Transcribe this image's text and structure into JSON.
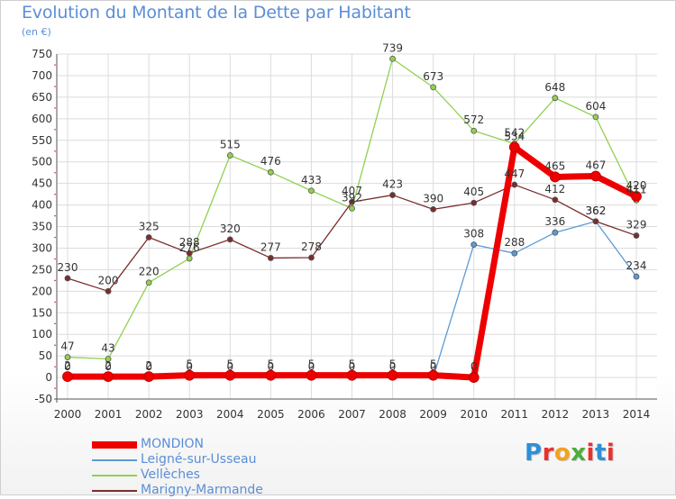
{
  "header": {
    "title": "Evolution du Montant de la Dette par Habitant",
    "unit": "(en €)"
  },
  "logo": {
    "text": "Proxiti",
    "colors": [
      "#2e8fd6",
      "#e8322e",
      "#f2a21c",
      "#4cae3a",
      "#e8322e",
      "#2e8fd6",
      "#e8322e"
    ]
  },
  "chart_data": {
    "type": "line",
    "title": "Evolution du Montant de la Dette par Habitant",
    "ylabel": "(en €)",
    "xlabel": "",
    "ylim": [
      -50,
      750
    ],
    "yticks": [
      -50,
      0,
      50,
      100,
      150,
      200,
      250,
      300,
      350,
      400,
      450,
      500,
      550,
      600,
      650,
      700,
      750
    ],
    "grid": true,
    "legend_position": "bottom-left",
    "x": [
      2000,
      2001,
      2002,
      2003,
      2004,
      2005,
      2006,
      2007,
      2008,
      2009,
      2010,
      2011,
      2012,
      2013,
      2014
    ],
    "series": [
      {
        "name": "MONDION",
        "color": "#ee0000",
        "width": 7,
        "values": [
          2,
          2,
          2,
          5,
          5,
          5,
          5,
          5,
          5,
          5,
          0,
          534,
          465,
          467,
          420
        ],
        "labels": [
          "2",
          "2",
          "2",
          "5",
          "5",
          "5",
          "5",
          "5",
          "5",
          "5",
          "0",
          "534",
          "465",
          "467",
          "420"
        ]
      },
      {
        "name": "Leigné-sur-Usseau",
        "color": "#5b9bd5",
        "width": 1.3,
        "values": [
          0,
          0,
          0,
          0,
          0,
          0,
          0,
          0,
          0,
          0,
          308,
          288,
          336,
          362,
          234
        ],
        "labels": [
          "0",
          "0",
          "0",
          "0",
          "0",
          "0",
          "0",
          "0",
          "0",
          "0",
          "308",
          "288",
          "336",
          "362",
          "234"
        ]
      },
      {
        "name": "Vellèches",
        "color": "#92d050",
        "width": 1.3,
        "values": [
          47,
          43,
          220,
          276,
          515,
          476,
          433,
          392,
          739,
          673,
          572,
          542,
          648,
          604,
          411
        ],
        "labels": [
          "47",
          "43",
          "220",
          "276",
          "515",
          "476",
          "433",
          "392",
          "739",
          "673",
          "572",
          "542",
          "648",
          "604",
          "411"
        ]
      },
      {
        "name": "Marigny-Marmande",
        "color": "#7b2c2c",
        "width": 1.3,
        "values": [
          230,
          200,
          325,
          288,
          320,
          277,
          278,
          407,
          423,
          390,
          405,
          447,
          412,
          362,
          329
        ],
        "labels": [
          "230",
          "200",
          "325",
          "288",
          "320",
          "277",
          "278",
          "407",
          "423",
          "390",
          "405",
          "447",
          "412",
          "362",
          "329"
        ]
      }
    ]
  }
}
